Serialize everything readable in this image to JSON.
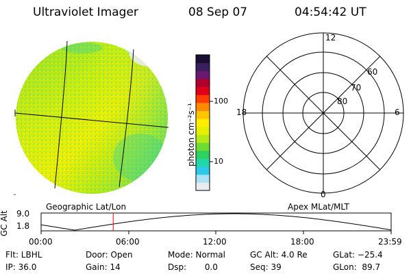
{
  "header": {
    "instrument": "Ultraviolet Imager",
    "date": "08 Sep 07",
    "time": "04:54:42 UT"
  },
  "colorbar": {
    "unit_label": "photon cm⁻²s⁻¹",
    "tick_labels": [
      "100",
      "10"
    ],
    "colors": [
      "#1a0f33",
      "#3a1f5e",
      "#6a1870",
      "#b0002a",
      "#e0001c",
      "#ff3d00",
      "#ff8a00",
      "#ffc400",
      "#ffee00",
      "#e4f000",
      "#b5ea1a",
      "#6fdc34",
      "#2ed160",
      "#23d6a8",
      "#2cc9e8",
      "#a8e2f4",
      "#e9edf2"
    ]
  },
  "left_map": {
    "label": "Geographic Lat/Lon"
  },
  "polar_plot": {
    "label": "Apex MLat/MLT",
    "mlt_labels": {
      "top": "12",
      "left": "18",
      "right": "6",
      "bottom": "0"
    },
    "lat_labels": [
      "60",
      "70",
      "80"
    ]
  },
  "altitude_plot": {
    "axis_label": "GC Alt",
    "y_ticks": [
      "9.0",
      "1.8"
    ],
    "x_ticks": [
      "00:00",
      "06:00",
      "12:00",
      "18:00",
      "23:59"
    ],
    "marker_color": "#ff0000",
    "current_time_fraction": 0.206
  },
  "status": {
    "flt": "Flt: LBHL",
    "door": "Door: Open",
    "mode": "Mode: Normal",
    "gc_alt": "GC Alt: 4.0 Re",
    "glat": "GLat: −25.4",
    "ip": "IP: 36.0",
    "gain": "Gain: 14",
    "dsp": "Dsp:       0.0",
    "seq": "Seq: 39",
    "glon": "GLon:  89.7"
  }
}
